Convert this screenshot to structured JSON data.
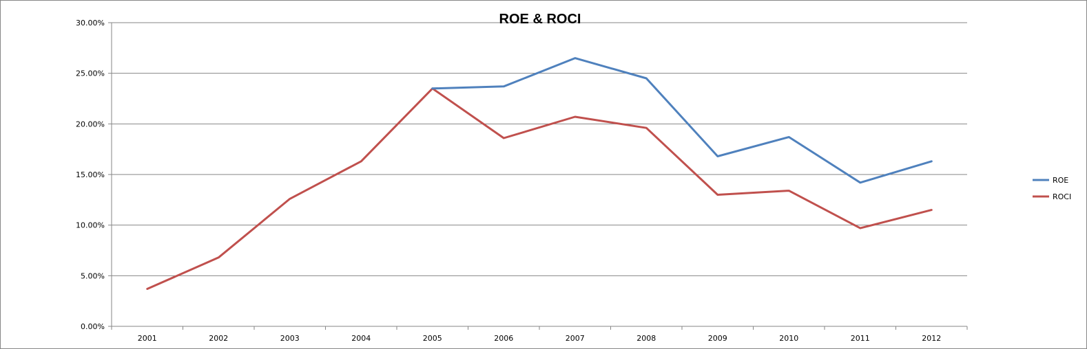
{
  "chart_data": {
    "type": "line",
    "title": "ROE & ROCI",
    "xlabel": "",
    "ylabel": "",
    "categories": [
      "2001",
      "2002",
      "2003",
      "2004",
      "2005",
      "2006",
      "2007",
      "2008",
      "2009",
      "2010",
      "2011",
      "2012"
    ],
    "ylim": [
      0,
      30
    ],
    "y_ticks": [
      0,
      5,
      10,
      15,
      20,
      25,
      30
    ],
    "y_tick_labels": [
      "0.00%",
      "5.00%",
      "10.00%",
      "15.00%",
      "20.00%",
      "25.00%",
      "30.00%"
    ],
    "grid": true,
    "legend_position": "right",
    "series": [
      {
        "name": "ROE",
        "color": "#4F81BD",
        "values": [
          null,
          null,
          null,
          null,
          23.5,
          23.7,
          26.5,
          24.5,
          16.8,
          18.7,
          14.2,
          16.3
        ]
      },
      {
        "name": "ROCI",
        "color": "#C0504D",
        "values": [
          3.7,
          6.8,
          12.6,
          16.3,
          23.5,
          18.6,
          20.7,
          19.6,
          13.0,
          13.4,
          9.7,
          11.5
        ]
      }
    ]
  }
}
